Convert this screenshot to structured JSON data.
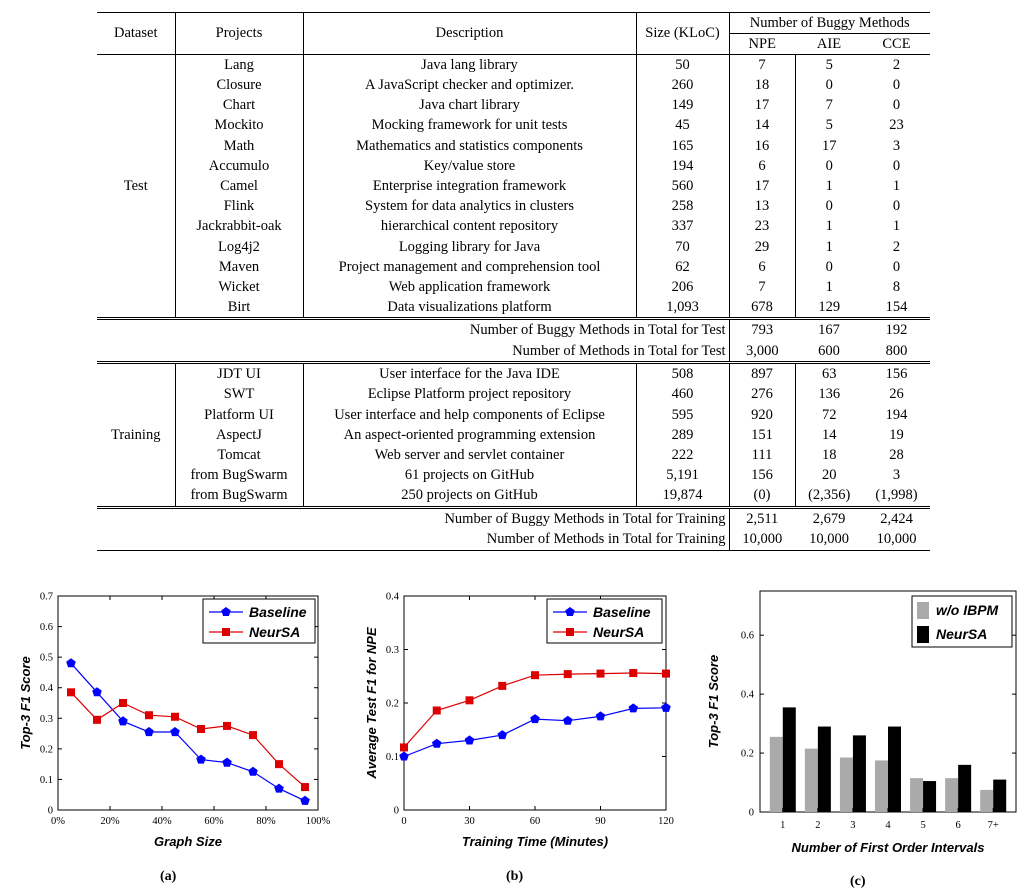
{
  "table": {
    "header": {
      "dataset": "Dataset",
      "projects": "Projects",
      "description": "Description",
      "size": "Size (KLoC)",
      "buggy_methods": "Number of Buggy Methods",
      "npe": "NPE",
      "aie": "AIE",
      "cce": "CCE"
    },
    "test_label": "Test",
    "training_label": "Training",
    "test_rows": [
      [
        "Lang",
        "Java lang library",
        "50",
        "7",
        "5",
        "2"
      ],
      [
        "Closure",
        "A JavaScript checker and optimizer.",
        "260",
        "18",
        "0",
        "0"
      ],
      [
        "Chart",
        "Java chart library",
        "149",
        "17",
        "7",
        "0"
      ],
      [
        "Mockito",
        "Mocking framework for unit tests",
        "45",
        "14",
        "5",
        "23"
      ],
      [
        "Math",
        "Mathematics and statistics components",
        "165",
        "16",
        "17",
        "3"
      ],
      [
        "Accumulo",
        "Key/value store",
        "194",
        "6",
        "0",
        "0"
      ],
      [
        "Camel",
        "Enterprise integration framework",
        "560",
        "17",
        "1",
        "1"
      ],
      [
        "Flink",
        "System for data analytics in clusters",
        "258",
        "13",
        "0",
        "0"
      ],
      [
        "Jackrabbit-oak",
        "hierarchical content repository",
        "337",
        "23",
        "1",
        "1"
      ],
      [
        "Log4j2",
        "Logging library for Java",
        "70",
        "29",
        "1",
        "2"
      ],
      [
        "Maven",
        "Project management and comprehension tool",
        "62",
        "6",
        "0",
        "0"
      ],
      [
        "Wicket",
        "Web application framework",
        "206",
        "7",
        "1",
        "8"
      ],
      [
        "Birt",
        "Data visualizations platform",
        "1,093",
        "678",
        "129",
        "154"
      ]
    ],
    "test_summary": [
      [
        "Number of Buggy Methods in Total for Test",
        "793",
        "167",
        "192"
      ],
      [
        "Number of Methods in Total for Test",
        "3,000",
        "600",
        "800"
      ]
    ],
    "training_rows": [
      [
        "JDT UI",
        "User interface for the Java IDE",
        "508",
        "897",
        "63",
        "156"
      ],
      [
        "SWT",
        "Eclipse Platform project repository",
        "460",
        "276",
        "136",
        "26"
      ],
      [
        "Platform UI",
        "User interface and help components of Eclipse",
        "595",
        "920",
        "72",
        "194"
      ],
      [
        "AspectJ",
        "An aspect-oriented programming extension",
        "289",
        "151",
        "14",
        "19"
      ],
      [
        "Tomcat",
        "Web server and servlet container",
        "222",
        "111",
        "18",
        "28"
      ],
      [
        "from BugSwarm",
        "61 projects on GitHub",
        "5,191",
        "156",
        "20",
        "3"
      ],
      [
        "from BugSwarm",
        "250 projects on GitHub",
        "19,874",
        "(0)",
        "(2,356)",
        "(1,998)"
      ]
    ],
    "training_summary": [
      [
        "Number of Buggy Methods in Total for Training",
        "2,511",
        "2,679",
        "2,424"
      ],
      [
        "Number of Methods in Total for Training",
        "10,000",
        "10,000",
        "10,000"
      ]
    ]
  },
  "chart_data": [
    {
      "type": "line",
      "panel_label": "(a)",
      "xlabel": "Graph Size",
      "ylabel": "Top-3 F1 Score",
      "xlim": [
        0,
        100
      ],
      "ylim": [
        0,
        0.7
      ],
      "xticks": [
        0,
        20,
        40,
        60,
        80,
        100
      ],
      "xtick_labels": [
        "0%",
        "20%",
        "40%",
        "60%",
        "80%",
        "100%"
      ],
      "yticks": [
        0,
        0.1,
        0.2,
        0.3,
        0.4,
        0.5,
        0.6,
        0.7
      ],
      "ytick_labels": [
        "0",
        "0.1",
        "0.2",
        "0.3",
        "0.4",
        "0.5",
        "0.6",
        "0.7"
      ],
      "legend_position": "top-right",
      "series": [
        {
          "name": "Baseline",
          "color": "#0000ff",
          "marker": "pentagon",
          "x": [
            5,
            15,
            25,
            35,
            45,
            55,
            65,
            75,
            85,
            95
          ],
          "y": [
            0.48,
            0.385,
            0.29,
            0.255,
            0.255,
            0.165,
            0.155,
            0.125,
            0.07,
            0.03
          ]
        },
        {
          "name": "NeurSA",
          "color": "#dd0000",
          "marker": "square",
          "x": [
            5,
            15,
            25,
            35,
            45,
            55,
            65,
            75,
            85,
            95
          ],
          "y": [
            0.385,
            0.295,
            0.35,
            0.31,
            0.305,
            0.265,
            0.275,
            0.245,
            0.15,
            0.075
          ]
        }
      ]
    },
    {
      "type": "line",
      "panel_label": "(b)",
      "xlabel": "Training Time (Minutes)",
      "ylabel": "Average Test F1 for NPE",
      "xlim": [
        0,
        120
      ],
      "ylim": [
        0,
        0.4
      ],
      "xticks": [
        0,
        30,
        60,
        90,
        120
      ],
      "xtick_labels": [
        "0",
        "30",
        "60",
        "90",
        "120"
      ],
      "yticks": [
        0,
        0.1,
        0.2,
        0.3,
        0.4
      ],
      "ytick_labels": [
        "0",
        "0.1",
        "0.2",
        "0.3",
        "0.4"
      ],
      "legend_position": "top-right",
      "series": [
        {
          "name": "Baseline",
          "color": "#0000ff",
          "marker": "pentagon",
          "x": [
            0,
            15,
            30,
            45,
            60,
            75,
            90,
            105,
            120
          ],
          "y": [
            0.1,
            0.124,
            0.13,
            0.14,
            0.17,
            0.167,
            0.175,
            0.19,
            0.191
          ]
        },
        {
          "name": "NeurSA",
          "color": "#dd0000",
          "marker": "square",
          "x": [
            0,
            15,
            30,
            45,
            60,
            75,
            90,
            105,
            120
          ],
          "y": [
            0.117,
            0.186,
            0.205,
            0.232,
            0.252,
            0.254,
            0.255,
            0.256,
            0.255
          ]
        }
      ]
    },
    {
      "type": "bar",
      "panel_label": "(c)",
      "xlabel": "Number of First Order Intervals",
      "ylabel": "Top-3 F1 Score",
      "categories": [
        "1",
        "2",
        "3",
        "4",
        "5",
        "6",
        "7+"
      ],
      "ylim": [
        0,
        0.75
      ],
      "yticks": [
        0,
        0.2,
        0.4,
        0.6
      ],
      "ytick_labels": [
        "0",
        "0.2",
        "0.4",
        "0.6"
      ],
      "legend_position": "top-right",
      "series": [
        {
          "name": "w/o IBPM",
          "color": "#aaaaaa",
          "values": [
            0.255,
            0.215,
            0.185,
            0.175,
            0.115,
            0.115,
            0.075
          ]
        },
        {
          "name": "NeurSA",
          "color": "#000000",
          "values": [
            0.355,
            0.29,
            0.26,
            0.29,
            0.105,
            0.16,
            0.11
          ]
        }
      ]
    }
  ]
}
